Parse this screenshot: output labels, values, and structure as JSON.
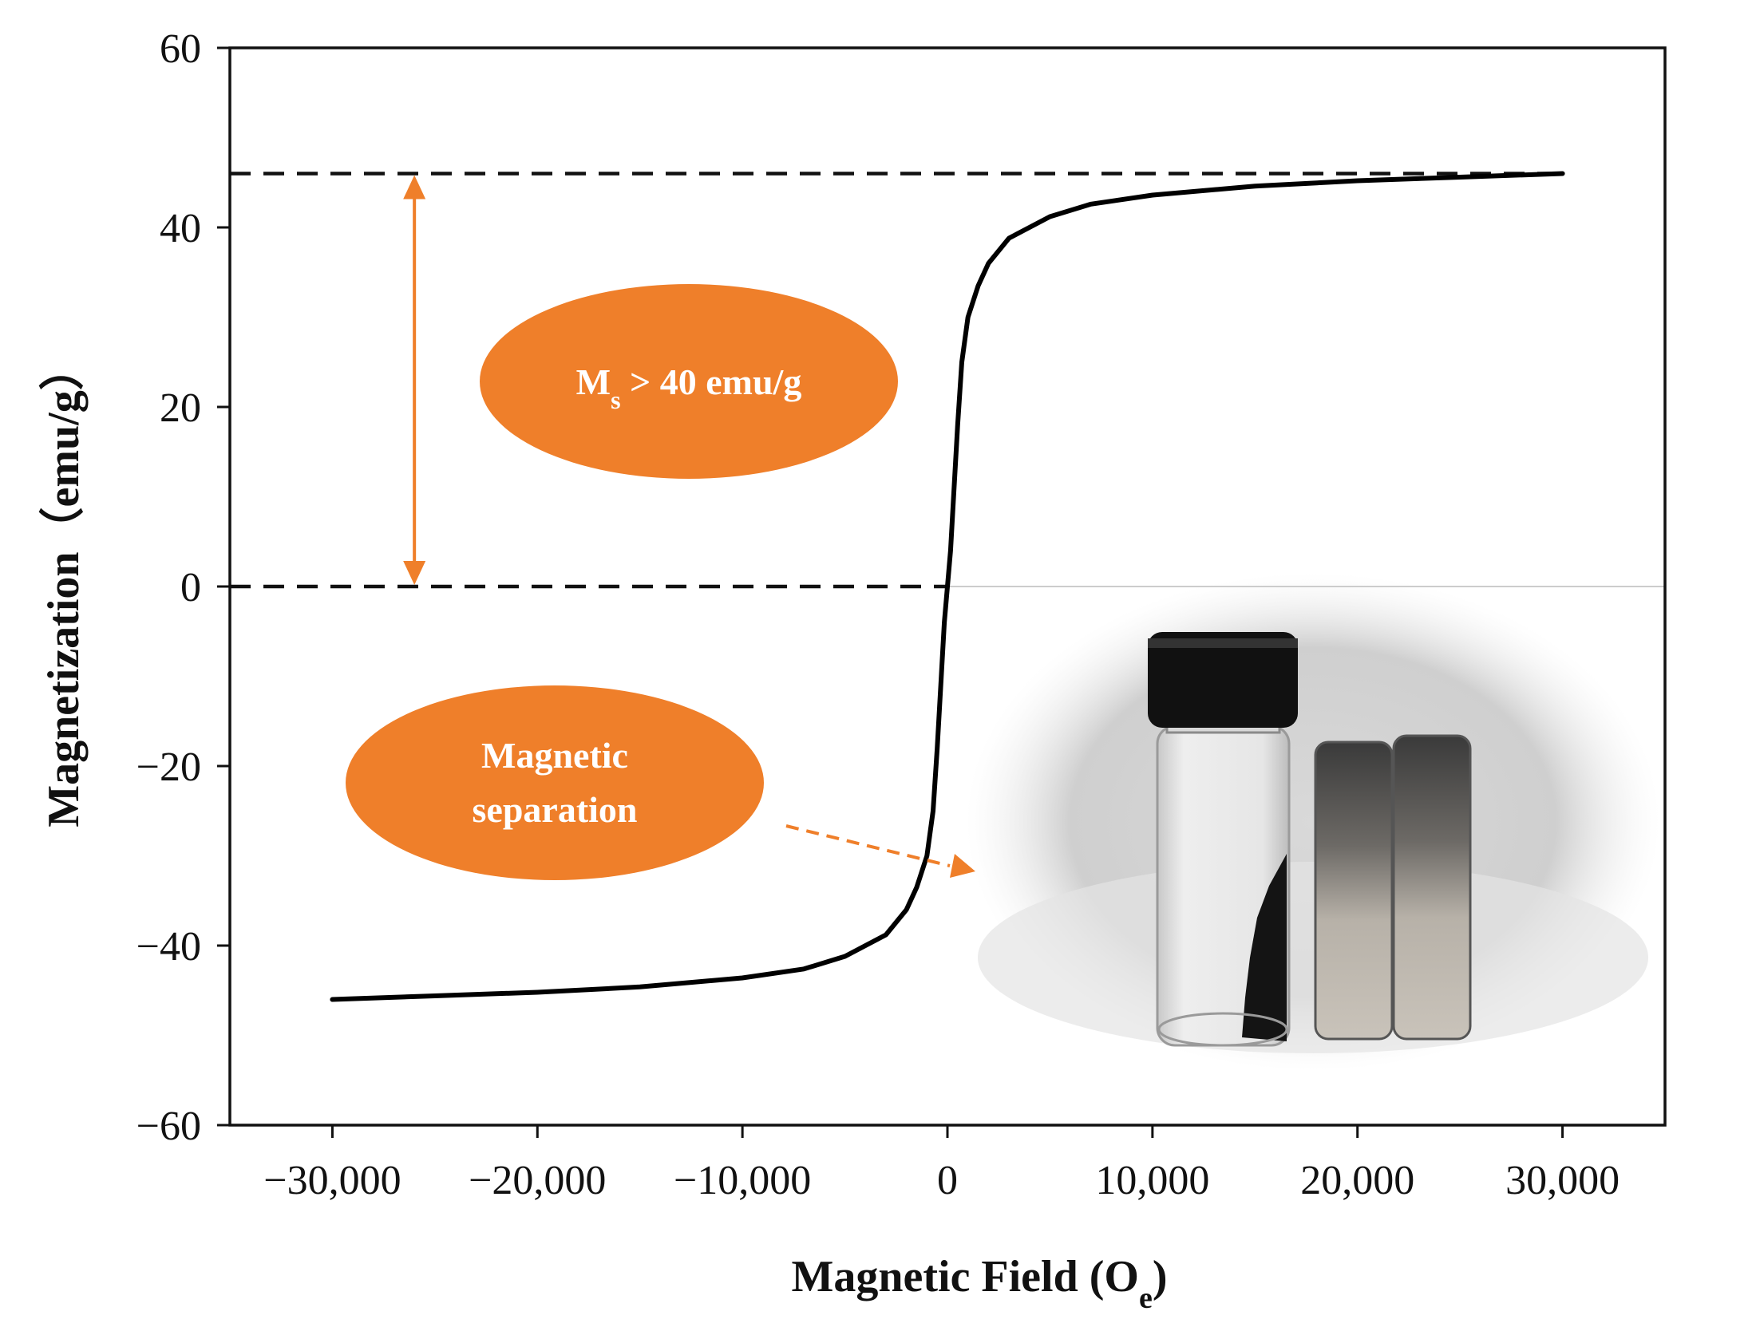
{
  "chart_data": {
    "type": "line",
    "title": "",
    "xlabel_main": "Magnetic Field (O",
    "xlabel_sub": "e",
    "xlabel_close": ")",
    "ylabel": "Magnetization（emu/g）",
    "xlim": [
      -35000,
      35000
    ],
    "ylim": [
      -60,
      60
    ],
    "xticks": [
      -30000,
      -20000,
      -10000,
      0,
      10000,
      20000,
      30000
    ],
    "xtick_labels": [
      "−30,000",
      "−20,000",
      "−10,000",
      "0",
      "10,000",
      "20,000",
      "30,000"
    ],
    "yticks": [
      -60,
      -40,
      -20,
      0,
      20,
      40,
      60
    ],
    "ytick_labels": [
      "−60",
      "−40",
      "−20",
      "0",
      "20",
      "40",
      "60"
    ],
    "series": [
      {
        "name": "magnetization curve",
        "x": [
          -30000,
          -25000,
          -20000,
          -15000,
          -10000,
          -7000,
          -5000,
          -3000,
          -2000,
          -1500,
          -1000,
          -700,
          -500,
          -300,
          -150,
          0,
          150,
          300,
          500,
          700,
          1000,
          1500,
          2000,
          3000,
          5000,
          7000,
          10000,
          15000,
          20000,
          25000,
          30000
        ],
        "y": [
          -46,
          -45.6,
          -45.2,
          -44.6,
          -43.6,
          -42.6,
          -41.2,
          -38.8,
          -36,
          -33.5,
          -30,
          -25,
          -18,
          -10,
          -4,
          0,
          4,
          10,
          18,
          25,
          30,
          33.5,
          36,
          38.8,
          41.2,
          42.6,
          43.6,
          44.6,
          45.2,
          45.6,
          46
        ]
      }
    ],
    "reference_lines": [
      {
        "name": "saturation line",
        "y": 46,
        "x_start": -35000,
        "x_end": 30000,
        "style": "dashed"
      },
      {
        "name": "zero line",
        "y": 0,
        "x_start": -35000,
        "x_end": 0,
        "style": "dashed"
      }
    ],
    "annotations": {
      "ms_label_main": "M",
      "ms_label_sub": "s",
      "ms_label_rest": " > 40 emu/g",
      "arrow_x": -26000,
      "arrow_y_from": 0,
      "arrow_y_to": 46,
      "separation_line1": "Magnetic",
      "separation_line2": "separation"
    },
    "colors": {
      "curve": "#000000",
      "accent": "#ef7f2a",
      "axis": "#111111"
    }
  }
}
